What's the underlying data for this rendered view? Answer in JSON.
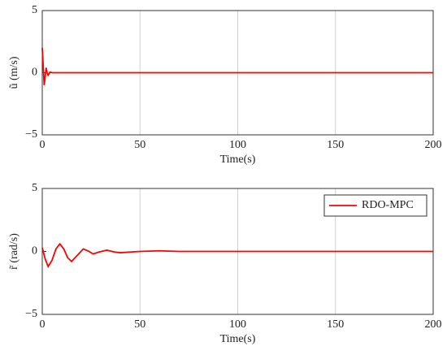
{
  "chart_data": [
    {
      "type": "line",
      "xlabel": "Time(s)",
      "ylabel": "ũ (m/s)",
      "x": [
        0,
        0.5,
        1,
        1.5,
        2,
        2.5,
        3,
        4,
        5,
        10,
        50,
        100,
        150,
        200
      ],
      "series": [
        {
          "color": "#ff0000",
          "values": [
            2,
            0.5,
            -1,
            -0.3,
            0.4,
            0,
            -0.2,
            0.05,
            0,
            0,
            0,
            0,
            0,
            0
          ]
        }
      ],
      "xlim": [
        0,
        200
      ],
      "xticks": [
        0,
        50,
        100,
        150,
        200
      ],
      "ylim": [
        -5,
        5
      ],
      "yticks": [
        {
          "value": -5,
          "label": "−5"
        },
        0,
        5
      ],
      "grid": "x"
    },
    {
      "type": "line",
      "xlabel": "Time(s)",
      "ylabel": "r̃ (rad/s)",
      "x": [
        0,
        1.5,
        3,
        5,
        7,
        9,
        11,
        13,
        15,
        18,
        21,
        24,
        26,
        29,
        33,
        37,
        40,
        45,
        50,
        60,
        70,
        100,
        150,
        200
      ],
      "series": [
        {
          "name": "RDO-MPC",
          "color": "#ff0000",
          "values": [
            0.3,
            -0.6,
            -1.2,
            -0.7,
            0.2,
            0.6,
            0.2,
            -0.5,
            -0.8,
            -0.3,
            0.2,
            0.0,
            -0.2,
            -0.05,
            0.1,
            -0.05,
            -0.1,
            -0.05,
            0,
            0.05,
            0,
            0,
            0,
            0
          ]
        }
      ],
      "xlim": [
        0,
        200
      ],
      "xticks": [
        0,
        50,
        100,
        150,
        200
      ],
      "ylim": [
        -5,
        5
      ],
      "yticks": [
        {
          "value": -5,
          "label": "−5"
        },
        0,
        5
      ],
      "grid": "x",
      "legend": "upper right"
    }
  ]
}
